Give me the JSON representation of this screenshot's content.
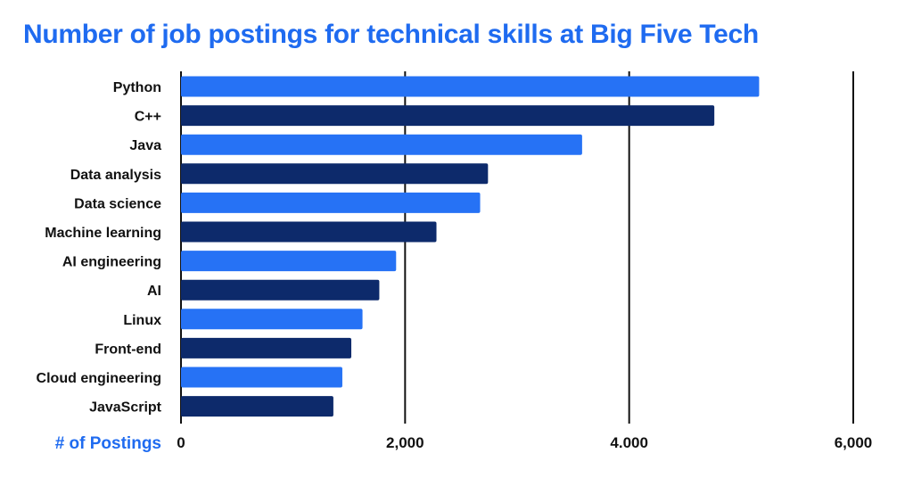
{
  "colors": {
    "title": "#1f6bf0",
    "bar_light": "#2672f5",
    "bar_dark": "#0d2a6b",
    "grid": "#111111"
  },
  "chart_data": {
    "type": "bar",
    "orientation": "horizontal",
    "title": "Number of job postings for technical skills at Big Five Tech",
    "xlabel": "# of Postings",
    "ylabel": "",
    "categories": [
      "Python",
      "C++",
      "Java",
      "Data analysis",
      "Data science",
      "Machine learning",
      "AI engineering",
      "AI",
      "Linux",
      "Front-end",
      "Cloud engineering",
      "JavaScript"
    ],
    "values": [
      5160,
      4760,
      3580,
      2740,
      2670,
      2280,
      1920,
      1770,
      1620,
      1520,
      1440,
      1360
    ],
    "xlim": [
      0,
      6000
    ],
    "x_ticks": [
      0,
      2000,
      4000,
      6000
    ],
    "x_tick_labels": [
      "0",
      "2,000",
      "4.000",
      "6,000"
    ],
    "grid": true,
    "legend": "none"
  }
}
